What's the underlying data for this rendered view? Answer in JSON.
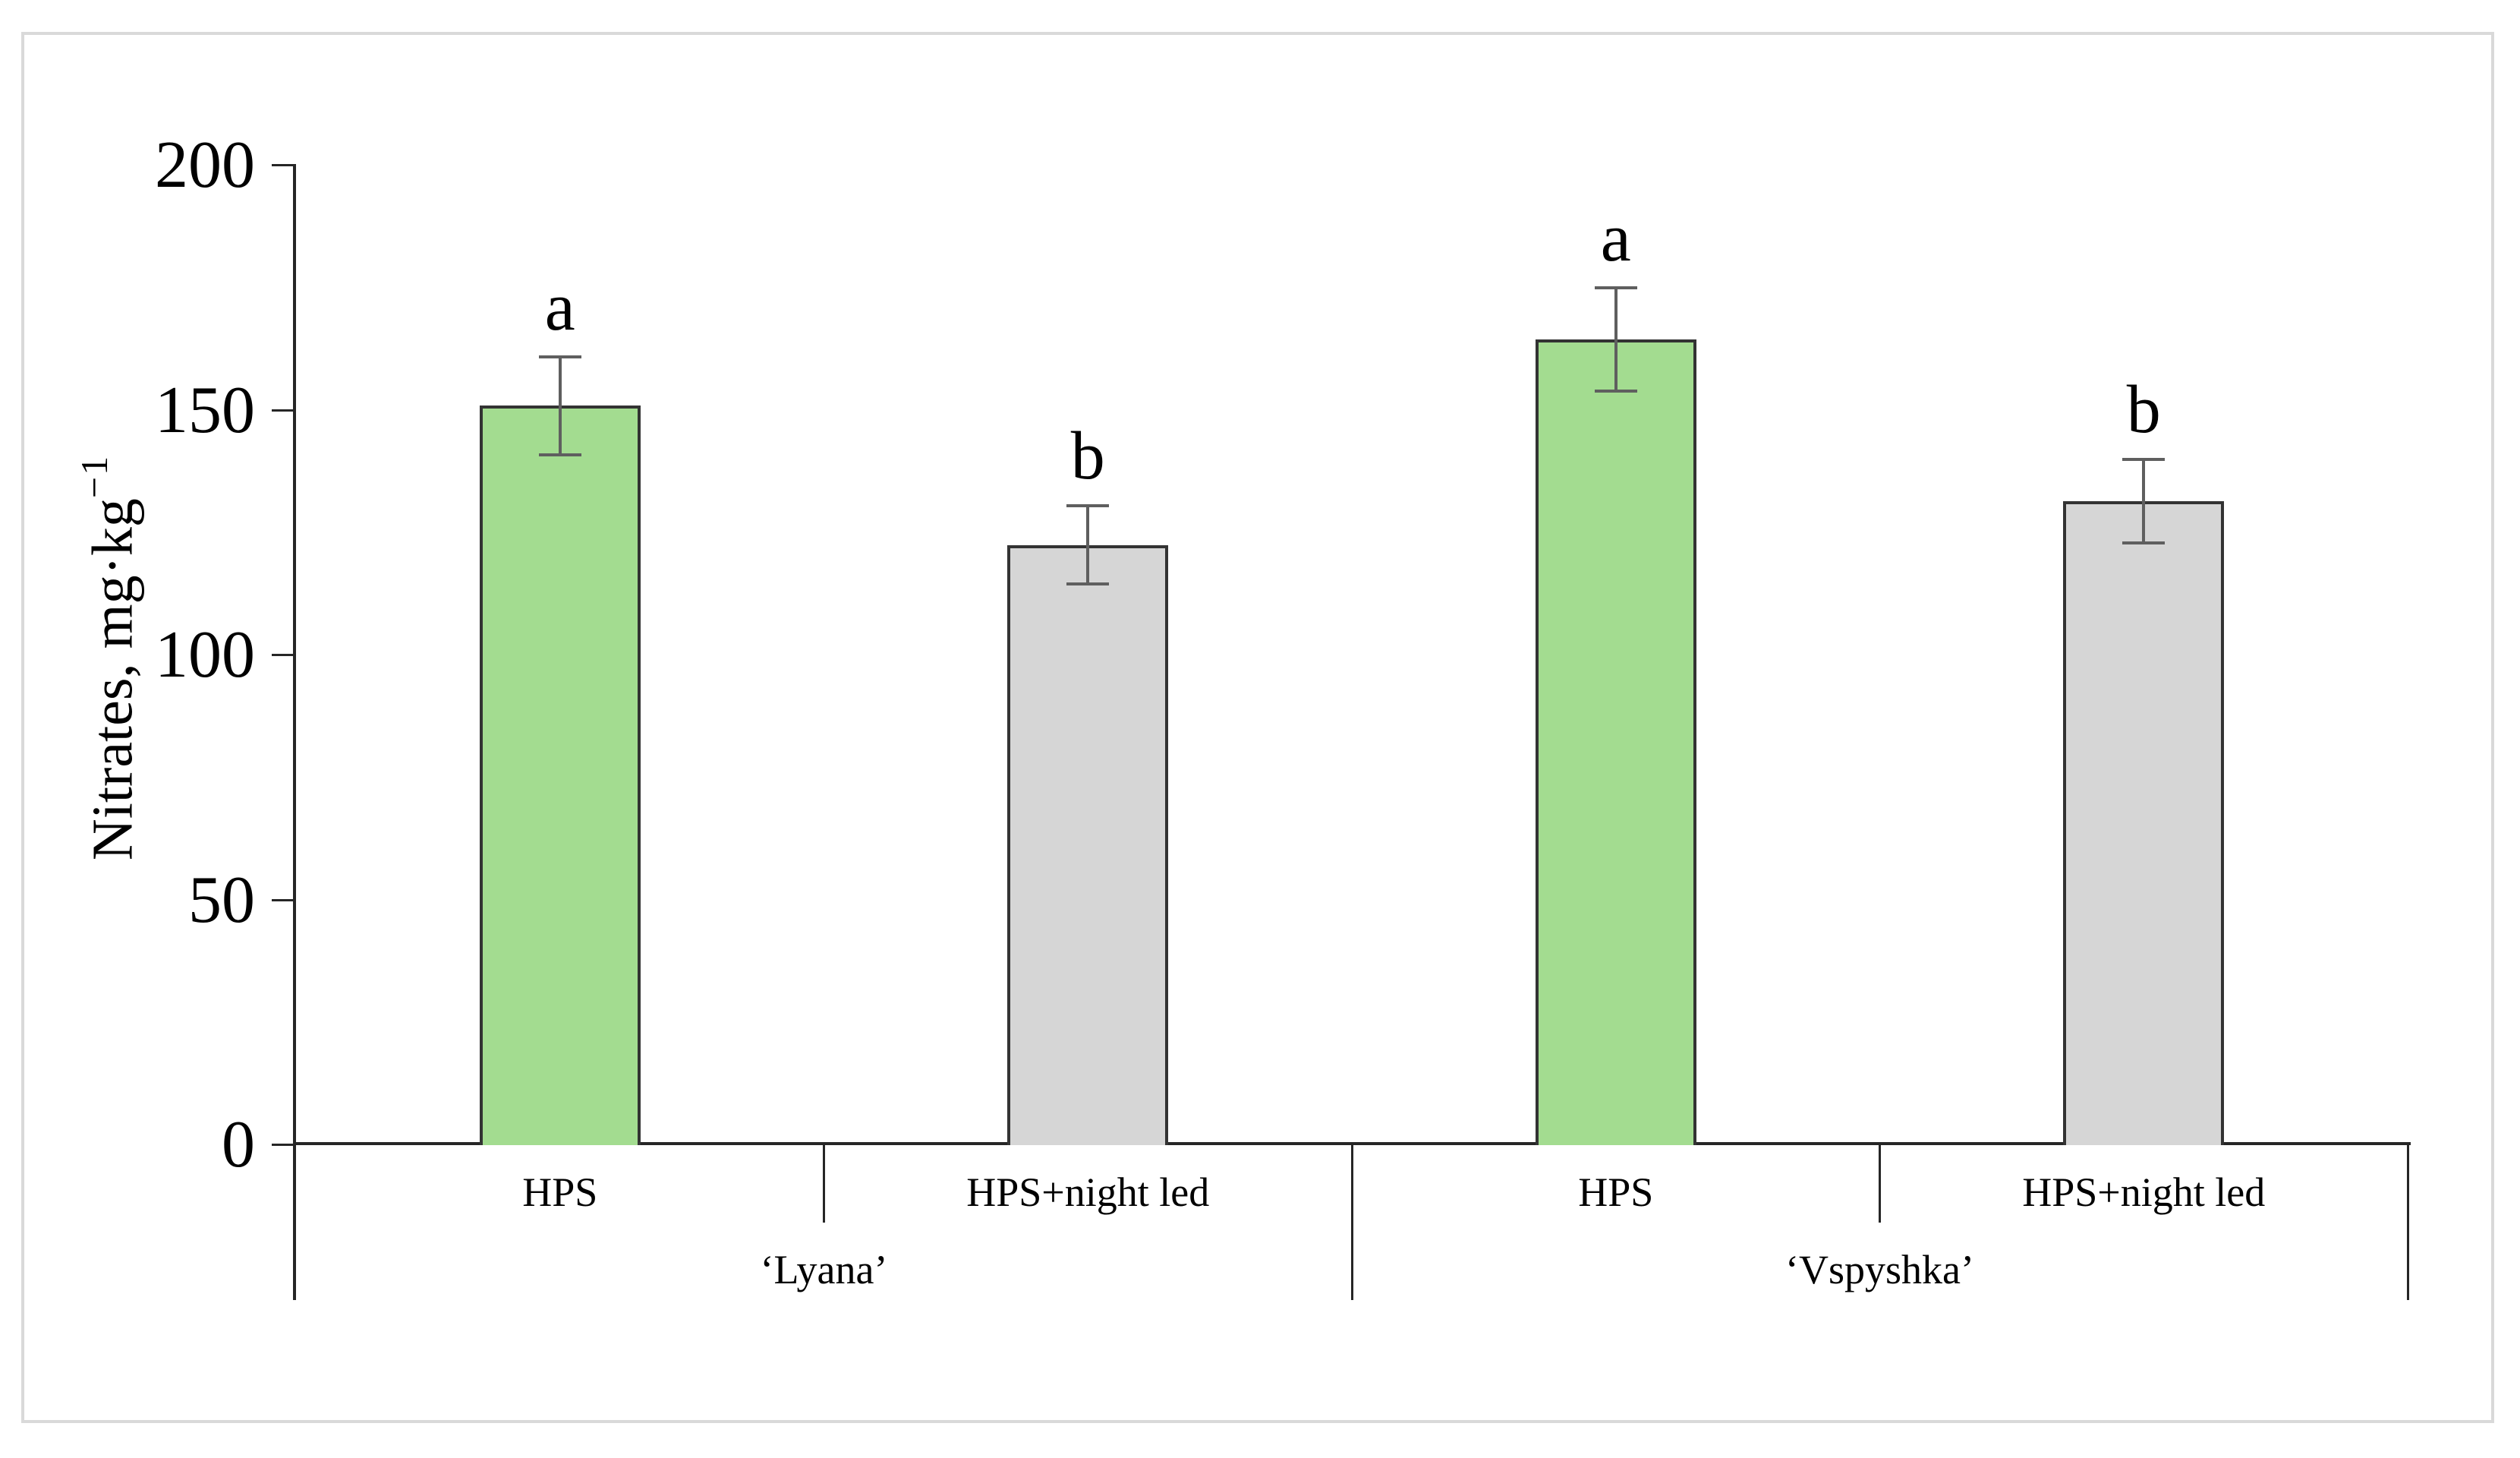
{
  "chart_data": {
    "type": "bar",
    "title": "",
    "ylabel_main": "Nitrates, mg·kg",
    "ylabel_sup": "−1",
    "ylim": [
      0,
      200
    ],
    "yticks": [
      0,
      50,
      100,
      150,
      200
    ],
    "grid": false,
    "legend": null,
    "categories": [
      "HPS",
      "HPS+night led",
      "HPS",
      "HPS+night led"
    ],
    "groups": [
      {
        "label": "‘Lyana’",
        "bars": [
          {
            "category": "HPS",
            "value": 151,
            "error": 10,
            "letter": "a",
            "fill": "green"
          },
          {
            "category": "HPS+night led",
            "value": 122.5,
            "error": 8,
            "letter": "b",
            "fill": "gray"
          }
        ]
      },
      {
        "label": "‘Vspyshka’",
        "bars": [
          {
            "category": "HPS",
            "value": 164.5,
            "error": 10.5,
            "letter": "a",
            "fill": "green"
          },
          {
            "category": "HPS+night led",
            "value": 131.5,
            "error": 8.5,
            "letter": "b",
            "fill": "gray"
          }
        ]
      }
    ],
    "colors": {
      "green_fill": "#a3dc90",
      "gray_fill": "#d6d6d6",
      "bar_border": "#333333",
      "error_bar": "#5f5f5f",
      "axis": "#262626",
      "text": "#000000",
      "frame": "#d9d9d9"
    }
  }
}
